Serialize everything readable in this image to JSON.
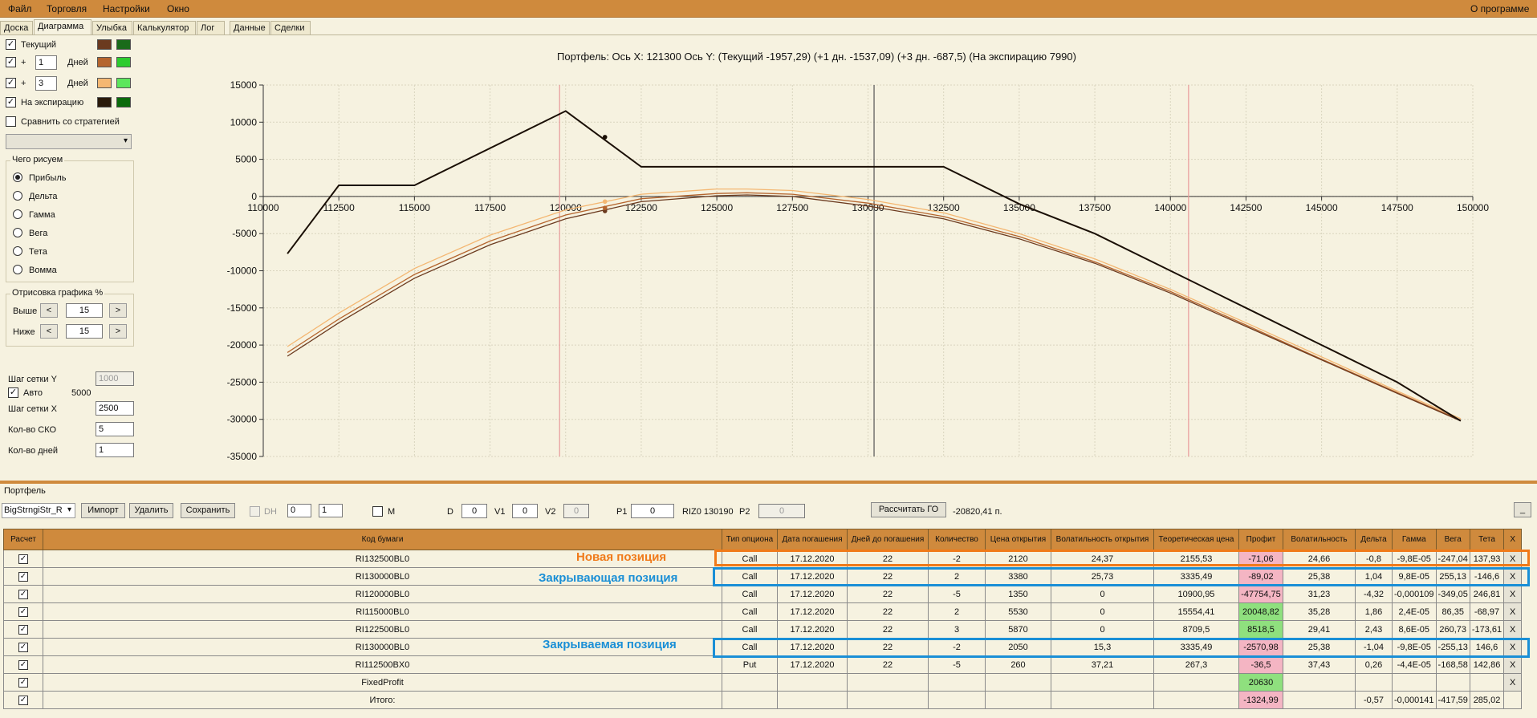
{
  "menu": {
    "file": "Файл",
    "trade": "Торговля",
    "settings": "Настройки",
    "window": "Окно",
    "about": "О программе"
  },
  "tabs": [
    "Доска",
    "Диаграмма",
    "Улыбка",
    "Калькулятор",
    "Лог",
    "Данные",
    "Сделки"
  ],
  "left": {
    "current": "Текущий",
    "plus": "+",
    "days_1": "1",
    "days_3": "3",
    "days_label": "Дней",
    "expiration": "На экспирацию",
    "compare": "Сравнить со стратегией",
    "what_group": "Чего рисуем",
    "radios": [
      "Прибыль",
      "Дельта",
      "Гамма",
      "Вега",
      "Тета",
      "Вомма"
    ],
    "draw_group": "Отрисовка графика %",
    "above": "Выше",
    "below": "Ниже",
    "above_val": "15",
    "below_val": "15",
    "grid_y": "Шаг сетки Y",
    "grid_y_val": "1000",
    "auto": "Авто",
    "auto_val": "5000",
    "grid_x": "Шаг сетки X",
    "grid_x_val": "2500",
    "sko": "Кол-во СКО",
    "sko_val": "5",
    "days": "Кол-во дней",
    "days_val": "1",
    "colors": {
      "current": [
        "#6b3a1f",
        "#1a6b1a"
      ],
      "plus1": [
        "#b5652e",
        "#2ecc2e"
      ],
      "plus3": [
        "#f4b772",
        "#5ce65c"
      ],
      "expiration": [
        "#2a1a0a",
        "#0b6b0b"
      ]
    }
  },
  "chart_title": "Портфель: Ось Х: 121300 Ось Y:  (Текущий -1957,29)  (+1 дн. -1537,09)  (+3 дн. -687,5)  (На экспирацию 7990)",
  "chart_data": {
    "type": "line",
    "xlim": [
      110000,
      150000
    ],
    "ylim": [
      -35000,
      15000
    ],
    "x_ticks": [
      110000,
      112500,
      115000,
      117500,
      120000,
      122500,
      125000,
      127500,
      130000,
      132500,
      135000,
      137500,
      140000,
      142500,
      145000,
      147500,
      150000
    ],
    "y_ticks": [
      15000,
      10000,
      5000,
      0,
      -5000,
      -10000,
      -15000,
      -20000,
      -25000,
      -30000,
      -35000
    ],
    "grid": true,
    "vlines": [
      {
        "x": 119800,
        "color": "#e89a9a"
      },
      {
        "x": 130200,
        "color": "#555555"
      },
      {
        "x": 140600,
        "color": "#e89a9a"
      }
    ],
    "series": [
      {
        "name": "На экспирацию",
        "color": "#1a0f05",
        "x": [
          110800,
          112500,
          115000,
          120000,
          122500,
          132500,
          135000,
          137500,
          140000,
          142500,
          145000,
          147500,
          149600
        ],
        "y": [
          -7700,
          1500,
          1500,
          11500,
          4000,
          4000,
          -1000,
          -5000,
          -10000,
          -15000,
          -20000,
          -25000,
          -30200
        ]
      },
      {
        "name": "Текущий",
        "color": "#6b3a1f",
        "x": [
          110800,
          112500,
          115000,
          117500,
          120000,
          122500,
          125000,
          126000,
          127500,
          130000,
          132500,
          135000,
          137500,
          140000,
          142500,
          145000,
          147500,
          149600
        ],
        "y": [
          -21500,
          -17000,
          -11000,
          -6500,
          -3000,
          -700,
          100,
          200,
          0,
          -1300,
          -3000,
          -5700,
          -9000,
          -13000,
          -17500,
          -22000,
          -26500,
          -30200
        ]
      },
      {
        "name": "+1 дн.",
        "color": "#b5652e",
        "x": [
          110800,
          112500,
          115000,
          117500,
          120000,
          122500,
          125000,
          126000,
          127500,
          130000,
          132500,
          135000,
          137500,
          140000,
          142500,
          145000,
          147500,
          149600
        ],
        "y": [
          -21000,
          -16500,
          -10500,
          -6000,
          -2500,
          -300,
          400,
          500,
          300,
          -900,
          -2700,
          -5400,
          -8800,
          -12800,
          -17300,
          -21900,
          -26400,
          -30100
        ]
      },
      {
        "name": "+3 дн.",
        "color": "#f4b772",
        "x": [
          110800,
          112500,
          115000,
          117500,
          120000,
          122500,
          125000,
          126000,
          127500,
          130000,
          132500,
          135000,
          137500,
          140000,
          142500,
          145000,
          147500,
          149600
        ],
        "y": [
          -20200,
          -15700,
          -9700,
          -5200,
          -1800,
          300,
          1000,
          1000,
          800,
          -400,
          -2200,
          -5000,
          -8400,
          -12500,
          -17000,
          -21600,
          -26200,
          -29900
        ]
      }
    ],
    "markers": [
      {
        "x": 121300,
        "y": 7990,
        "color": "#1a0f05"
      },
      {
        "x": 121300,
        "y": -1957.29,
        "color": "#6b3a1f"
      },
      {
        "x": 121300,
        "y": -1537.09,
        "color": "#b5652e"
      },
      {
        "x": 121300,
        "y": -687.5,
        "color": "#f4b772"
      }
    ]
  },
  "portfolio": {
    "label": "Портфель",
    "name": "BigStrngiStr_R",
    "import": "Импорт",
    "delete": "Удалить",
    "save": "Сохранить",
    "dh": "DH",
    "spin1": "0",
    "spin2": "1",
    "m": "M",
    "d": "D",
    "d_val": "0",
    "v1": "V1",
    "v1_val": "0",
    "v2": "V2",
    "v2_val": "0",
    "p1": "P1",
    "p1_val": "0",
    "riz": "RIZ0 130190",
    "p2": "P2",
    "p2_val": "0",
    "calc_go": "Рассчитать ГО",
    "go_val": "-20820,41 п.",
    "min_btn": "_"
  },
  "table": {
    "headers": [
      "Расчет",
      "Код бумаги",
      "Тип опциона",
      "Дата погашения",
      "Дней до погашения",
      "Количество",
      "Цена открытия",
      "Волатильность открытия",
      "Теоретическая цена",
      "Профит",
      "Волатильность",
      "Дельта",
      "Гамма",
      "Вега",
      "Тета",
      "X"
    ],
    "rows": [
      [
        "RI132500BL0",
        "Call",
        "17.12.2020",
        "22",
        "-2",
        "2120",
        "24,37",
        "2155,53",
        "-71,06",
        "24,66",
        "-0,8",
        "-9,8E-05",
        "-247,04",
        "137,93",
        "X"
      ],
      [
        "RI130000BL0",
        "Call",
        "17.12.2020",
        "22",
        "2",
        "3380",
        "25,73",
        "3335,49",
        "-89,02",
        "25,38",
        "1,04",
        "9,8E-05",
        "255,13",
        "-146,6",
        "X"
      ],
      [
        "RI120000BL0",
        "Call",
        "17.12.2020",
        "22",
        "-5",
        "1350",
        "0",
        "10900,95",
        "-47754,75",
        "31,23",
        "-4,32",
        "-0,000109",
        "-349,05",
        "246,81",
        "X"
      ],
      [
        "RI115000BL0",
        "Call",
        "17.12.2020",
        "22",
        "2",
        "5530",
        "0",
        "15554,41",
        "20048,82",
        "35,28",
        "1,86",
        "2,4E-05",
        "86,35",
        "-68,97",
        "X"
      ],
      [
        "RI122500BL0",
        "Call",
        "17.12.2020",
        "22",
        "3",
        "5870",
        "0",
        "8709,5",
        "8518,5",
        "29,41",
        "2,43",
        "8,6E-05",
        "260,73",
        "-173,61",
        "X"
      ],
      [
        "RI130000BL0",
        "Call",
        "17.12.2020",
        "22",
        "-2",
        "2050",
        "15,3",
        "3335,49",
        "-2570,98",
        "25,38",
        "-1,04",
        "-9,8E-05",
        "-255,13",
        "146,6",
        "X"
      ],
      [
        "RI112500BX0",
        "Put",
        "17.12.2020",
        "22",
        "-5",
        "260",
        "37,21",
        "267,3",
        "-36,5",
        "37,43",
        "0,26",
        "-4,4E-05",
        "-168,58",
        "142,86",
        "X"
      ],
      [
        "FixedProfit",
        "",
        "",
        "",
        "",
        "",
        "",
        "",
        "20630",
        "",
        "",
        "",
        "",
        "",
        "X"
      ],
      [
        "Итого:",
        "",
        "",
        "",
        "",
        "",
        "",
        "",
        "-1324,99",
        "",
        "-0,57",
        "-0,000141",
        "-417,59",
        "285,02",
        ""
      ]
    ],
    "profit_colors": [
      "red",
      "red",
      "red",
      "green",
      "green",
      "red",
      "red",
      "green",
      "red"
    ]
  },
  "annotations": {
    "new": "Новая позиция",
    "closing": "Закрывающая позиция",
    "closed": "Закрываемая позиция",
    "orange": "#f07a1a",
    "blue": "#1a8fd6"
  }
}
